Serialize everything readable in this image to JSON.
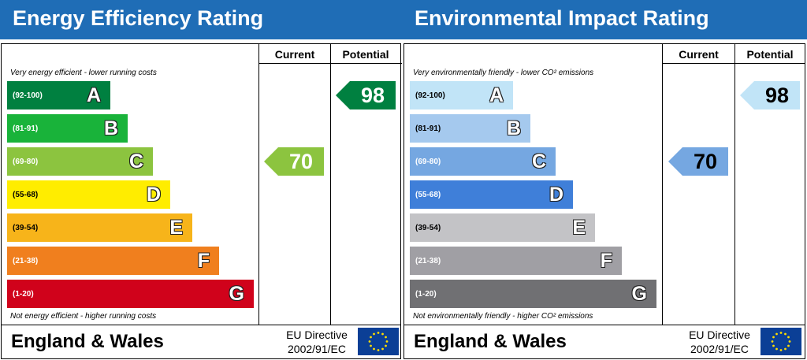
{
  "chart_data": [
    {
      "type": "bar",
      "title": "Energy Efficiency Rating",
      "column_headers": {
        "current": "Current",
        "potential": "Potential"
      },
      "top_note": "Very energy efficient - lower running costs",
      "bottom_note": "Not energy efficient - higher running costs",
      "bands": [
        {
          "letter": "A",
          "range": "(92-100)",
          "color": "#008040",
          "range_color": "#ffffff",
          "level": 0.42
        },
        {
          "letter": "B",
          "range": "(81-91)",
          "color": "#19b33a",
          "range_color": "#ffffff",
          "level": 0.49
        },
        {
          "letter": "C",
          "range": "(69-80)",
          "color": "#8cc43f",
          "range_color": "#ffffff",
          "level": 0.59
        },
        {
          "letter": "D",
          "range": "(55-68)",
          "color": "#ffed00",
          "range_color": "#000000",
          "level": 0.66
        },
        {
          "letter": "E",
          "range": "(39-54)",
          "color": "#f7b41a",
          "range_color": "#000000",
          "level": 0.75
        },
        {
          "letter": "F",
          "range": "(21-38)",
          "color": "#f07f1e",
          "range_color": "#ffffff",
          "level": 0.86
        },
        {
          "letter": "G",
          "range": "(1-20)",
          "color": "#d0021b",
          "range_color": "#ffffff",
          "level": 1.0
        }
      ],
      "current": {
        "value": "70",
        "band": "C",
        "color": "#8cc43f"
      },
      "potential": {
        "value": "98",
        "band": "A",
        "color": "#008040"
      },
      "value_color": "#ffffff",
      "footer": {
        "region": "England & Wales",
        "directive_line1": "EU Directive",
        "directive_line2": "2002/91/EC"
      }
    },
    {
      "type": "bar",
      "title": "Environmental Impact Rating",
      "column_headers": {
        "current": "Current",
        "potential": "Potential"
      },
      "top_note": "Very environmentally friendly - lower CO² emissions",
      "bottom_note": "Not environmentally friendly - higher CO² emissions",
      "bands": [
        {
          "letter": "A",
          "range": "(92-100)",
          "color": "#c1e4f7",
          "range_color": "#000000",
          "level": 0.42
        },
        {
          "letter": "B",
          "range": "(81-91)",
          "color": "#a5c9ee",
          "range_color": "#000000",
          "level": 0.49
        },
        {
          "letter": "C",
          "range": "(69-80)",
          "color": "#75a7e1",
          "range_color": "#ffffff",
          "level": 0.59
        },
        {
          "letter": "D",
          "range": "(55-68)",
          "color": "#3f7fd9",
          "range_color": "#ffffff",
          "level": 0.66
        },
        {
          "letter": "E",
          "range": "(39-54)",
          "color": "#c3c3c6",
          "range_color": "#000000",
          "level": 0.75
        },
        {
          "letter": "F",
          "range": "(21-38)",
          "color": "#a09fa4",
          "range_color": "#ffffff",
          "level": 0.86
        },
        {
          "letter": "G",
          "range": "(1-20)",
          "color": "#707073",
          "range_color": "#ffffff",
          "level": 1.0
        }
      ],
      "current": {
        "value": "70",
        "band": "C",
        "color": "#75a7e1"
      },
      "potential": {
        "value": "98",
        "band": "A",
        "color": "#c1e4f7"
      },
      "value_color": "#000000",
      "footer": {
        "region": "England & Wales",
        "directive_line1": "EU Directive",
        "directive_line2": "2002/91/EC"
      }
    }
  ]
}
